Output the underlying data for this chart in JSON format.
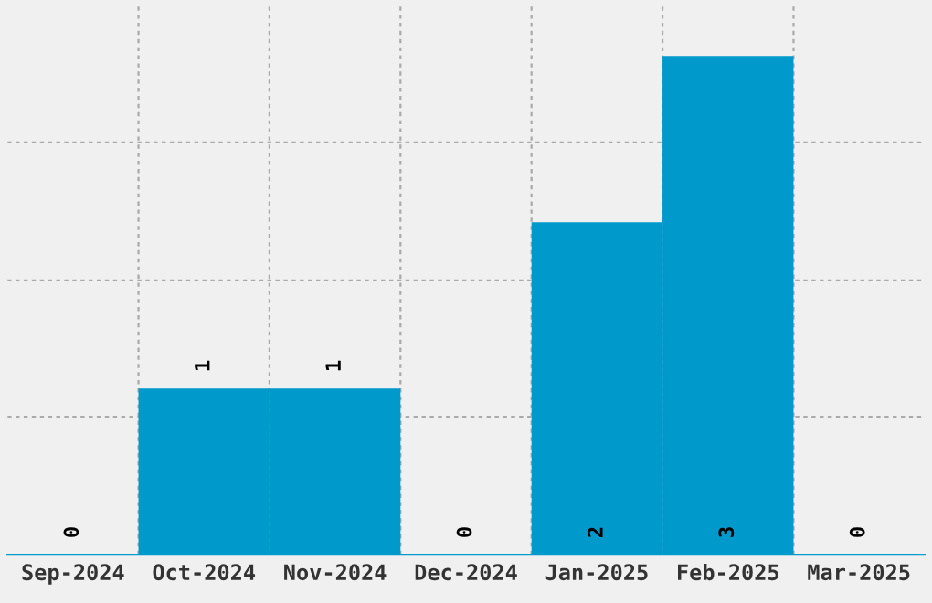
{
  "chart_data": {
    "type": "bar",
    "categories": [
      "Sep-2024",
      "Oct-2024",
      "Nov-2024",
      "Dec-2024",
      "Jan-2025",
      "Feb-2025",
      "Mar-2025"
    ],
    "values": [
      0,
      1,
      1,
      0,
      2,
      3,
      0
    ],
    "color": "#0099cc",
    "ylim": [
      0,
      3.3
    ],
    "yticks": [
      {
        "value": 0.83,
        "label": null
      },
      {
        "value": 1.65,
        "label": null
      },
      {
        "value": 2.48,
        "label": null
      }
    ],
    "tick_labels": "x",
    "grid": true,
    "data_labels": true
  }
}
